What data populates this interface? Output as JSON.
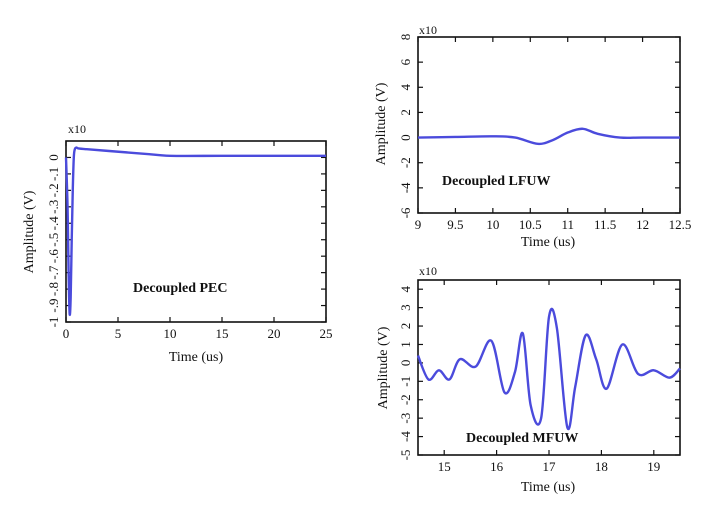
{
  "colors": {
    "line": "#4b4bdc",
    "axis": "#111111",
    "background": "#ffffff"
  },
  "chart_data": [
    {
      "id": "pec",
      "type": "line",
      "title": "",
      "annotation": "Decoupled PEC",
      "xlabel": "Time (us)",
      "ylabel": "Amplitude (V)",
      "exponent_label": "x10",
      "xlim": [
        0,
        25
      ],
      "ylim": [
        -1,
        0.1
      ],
      "xticks": [
        0,
        5,
        10,
        15,
        20,
        25
      ],
      "xtick_labels": [
        "0",
        "5",
        "10",
        "15",
        "20",
        "25"
      ],
      "yticks": [
        0,
        -0.1,
        -0.2,
        -0.3,
        -0.4,
        -0.5,
        -0.6,
        -0.7,
        -0.8,
        -0.9,
        -1
      ],
      "ytick_labels": [
        "0",
        "-.1",
        "-.2",
        "-.3",
        "-.4",
        "-.5",
        "-.6",
        "-.7",
        "-.8",
        "-.9",
        "-1"
      ],
      "grid": false,
      "x": [
        0.0,
        0.15,
        0.25,
        0.35,
        0.45,
        0.55,
        0.65,
        0.75,
        0.85,
        1.0,
        1.2,
        2,
        4,
        8,
        10,
        15,
        20,
        25
      ],
      "y": [
        0.0,
        -0.3,
        -0.7,
        -0.95,
        -0.85,
        -0.5,
        -0.2,
        0.0,
        0.05,
        0.06,
        0.055,
        0.05,
        0.04,
        0.02,
        0.01,
        0.01,
        0.01,
        0.01
      ]
    },
    {
      "id": "lfuw",
      "type": "line",
      "title": "",
      "annotation": "Decoupled LFUW",
      "xlabel": "Time (us)",
      "ylabel": "Amplitude (V)",
      "exponent_label": "x10",
      "xlim": [
        9,
        12.5
      ],
      "ylim": [
        -6,
        8
      ],
      "xticks": [
        9,
        9.5,
        10,
        10.5,
        11,
        11.5,
        12,
        12.5
      ],
      "xtick_labels": [
        "9",
        "9.5",
        "10",
        "10.5",
        "11",
        "11.5",
        "12",
        "12.5"
      ],
      "yticks": [
        8,
        6,
        4,
        2,
        0,
        -2,
        -4,
        -6
      ],
      "ytick_labels": [
        "8",
        "6",
        "4",
        "2",
        "0",
        "-2",
        "-4",
        "-6"
      ],
      "grid": false,
      "x": [
        9.0,
        9.5,
        10.0,
        10.3,
        10.6,
        10.8,
        11.0,
        11.2,
        11.4,
        11.7,
        12.0,
        12.5
      ],
      "y": [
        0.0,
        0.05,
        0.1,
        0.0,
        -0.5,
        -0.2,
        0.4,
        0.7,
        0.3,
        0.0,
        0.0,
        0.0
      ]
    },
    {
      "id": "mfuw",
      "type": "line",
      "title": "",
      "annotation": "Decoupled MFUW",
      "xlabel": "Time (us)",
      "ylabel": "Amplitude (V)",
      "exponent_label": "x10",
      "xlim": [
        14.5,
        19.5
      ],
      "ylim": [
        -5,
        4.5
      ],
      "xticks": [
        15,
        16,
        17,
        18,
        19
      ],
      "xtick_labels": [
        "15",
        "16",
        "17",
        "18",
        "19"
      ],
      "yticks": [
        4,
        3,
        2,
        1,
        0,
        -1,
        -2,
        -3,
        -4,
        -5
      ],
      "ytick_labels": [
        "4",
        "3",
        "2",
        "1",
        "0",
        "-1",
        "-2",
        "-3",
        "-4",
        "-5"
      ],
      "grid": false,
      "x": [
        14.5,
        14.7,
        14.9,
        15.1,
        15.3,
        15.6,
        15.9,
        16.15,
        16.35,
        16.5,
        16.65,
        16.85,
        17.0,
        17.15,
        17.35,
        17.5,
        17.7,
        17.9,
        18.1,
        18.4,
        18.7,
        19.0,
        19.3,
        19.5
      ],
      "y": [
        0.4,
        -0.9,
        -0.4,
        -0.9,
        0.2,
        -0.2,
        1.2,
        -1.6,
        -0.5,
        1.6,
        -2.3,
        -3.0,
        2.5,
        1.9,
        -3.5,
        -1.3,
        1.5,
        0.2,
        -1.4,
        1.0,
        -0.6,
        -0.4,
        -0.8,
        -0.3
      ]
    }
  ]
}
